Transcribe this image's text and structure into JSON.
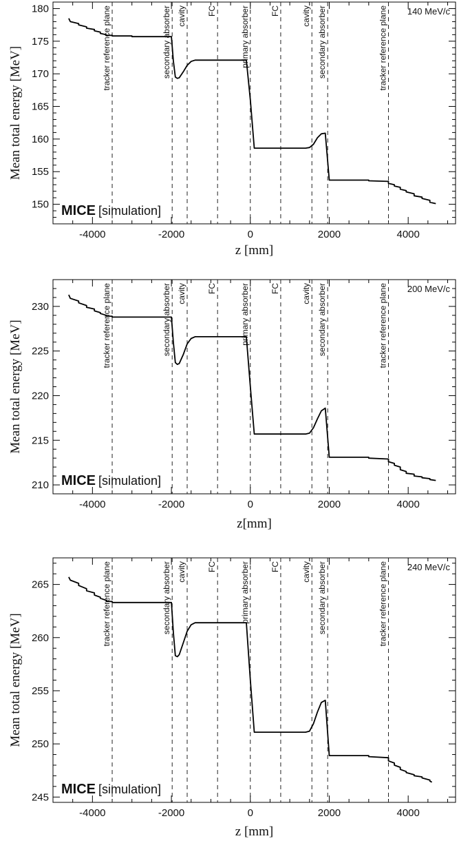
{
  "chart_data": [
    {
      "type": "line",
      "momentum_label": "140 MeV/c",
      "xlabel": "z [mm]",
      "ylabel": "Mean total energy [MeV]",
      "watermark": {
        "bold": "MICE",
        "regular": "[simulation]"
      },
      "xlim": [
        -5000,
        5200
      ],
      "ylim": [
        147,
        181
      ],
      "xticks": [
        -4000,
        -2000,
        0,
        2000,
        4000
      ],
      "xtick_labels": [
        "-4000",
        "-2000",
        "0",
        "2000",
        "4000"
      ],
      "yticks": [
        150,
        155,
        160,
        165,
        170,
        175,
        180
      ],
      "ytick_labels": [
        "150",
        "155",
        "160",
        "165",
        "170",
        "175",
        "180"
      ],
      "markers": [
        {
          "z": -3500,
          "label": "tracker reference plane"
        },
        {
          "z": -1980,
          "label": "secondary absorber"
        },
        {
          "z": -1600,
          "label": "cavity"
        },
        {
          "z": -830,
          "label": "FC"
        },
        {
          "z": 0,
          "label": "primary absorber"
        },
        {
          "z": 770,
          "label": "FC"
        },
        {
          "z": 1560,
          "label": "cavity"
        },
        {
          "z": 1960,
          "label": "secondary absorber"
        },
        {
          "z": 3500,
          "label": "tracker reference plane"
        }
      ],
      "series": [
        {
          "x": [
            -4600,
            -4560,
            -4560,
            -4350,
            -4350,
            -4150,
            -4150,
            -3950,
            -3950,
            -3800,
            -3800,
            -3650,
            -3650,
            -3500,
            -3500,
            -3000,
            -3000,
            -2000,
            -1950,
            -1900,
            -1850,
            -1800,
            -1700,
            -1600,
            -1500,
            -1400,
            -1300,
            -100,
            0,
            100,
            1400,
            1500,
            1600,
            1700,
            1800,
            1900,
            2000,
            3000,
            3000,
            3500,
            3500,
            3650,
            3650,
            3800,
            3800,
            3950,
            3950,
            4150,
            4150,
            4350,
            4350,
            4550,
            4550,
            4700
          ],
          "y": [
            178.5,
            178.0,
            178.0,
            177.7,
            177.5,
            177.2,
            177.0,
            176.8,
            176.6,
            176.4,
            176.2,
            176.0,
            175.9,
            175.9,
            175.8,
            175.8,
            175.7,
            175.7,
            172.0,
            169.5,
            169.3,
            169.4,
            170.3,
            171.3,
            171.9,
            172.1,
            172.1,
            172.1,
            166.0,
            158.6,
            158.6,
            158.7,
            159.2,
            160.2,
            160.8,
            160.9,
            153.7,
            153.7,
            153.6,
            153.5,
            153.2,
            153.0,
            152.8,
            152.6,
            152.3,
            152.1,
            151.9,
            151.6,
            151.3,
            151.1,
            150.9,
            150.6,
            150.3,
            150.1
          ]
        }
      ]
    },
    {
      "type": "line",
      "momentum_label": "200 MeV/c",
      "xlabel": "z[mm]",
      "ylabel": "Mean total energy [MeV]",
      "watermark": {
        "bold": "MICE",
        "regular": "[simulation]"
      },
      "xlim": [
        -5000,
        5200
      ],
      "ylim": [
        209,
        233
      ],
      "xticks": [
        -4000,
        -2000,
        0,
        2000,
        4000
      ],
      "xtick_labels": [
        "-4000",
        "-2000",
        "0",
        "2000",
        "4000"
      ],
      "yticks": [
        210,
        215,
        220,
        225,
        230
      ],
      "ytick_labels": [
        "210",
        "215",
        "220",
        "225",
        "230"
      ],
      "markers": [
        {
          "z": -3500,
          "label": "tracker reference plane"
        },
        {
          "z": -1980,
          "label": "secondary absorber"
        },
        {
          "z": -1600,
          "label": "cavity"
        },
        {
          "z": -830,
          "label": "FC"
        },
        {
          "z": 0,
          "label": "primary absorber"
        },
        {
          "z": 770,
          "label": "FC"
        },
        {
          "z": 1560,
          "label": "cavity"
        },
        {
          "z": 1960,
          "label": "secondary absorber"
        },
        {
          "z": 3500,
          "label": "tracker reference plane"
        }
      ],
      "series": [
        {
          "x": [
            -4600,
            -4560,
            -4560,
            -4350,
            -4350,
            -4150,
            -4150,
            -3950,
            -3950,
            -3800,
            -3800,
            -3650,
            -3650,
            -3500,
            -3500,
            -3000,
            -3000,
            -2000,
            -1950,
            -1900,
            -1850,
            -1800,
            -1700,
            -1600,
            -1500,
            -1400,
            -1300,
            -100,
            0,
            100,
            1400,
            1500,
            1600,
            1700,
            1800,
            1900,
            2000,
            3000,
            3000,
            3500,
            3500,
            3650,
            3650,
            3800,
            3800,
            3950,
            3950,
            4150,
            4150,
            4350,
            4350,
            4550,
            4550,
            4700
          ],
          "y": [
            231.3,
            230.9,
            230.9,
            230.6,
            230.4,
            230.1,
            229.9,
            229.7,
            229.5,
            229.3,
            229.2,
            229.0,
            228.9,
            228.9,
            228.8,
            228.8,
            228.8,
            228.8,
            226.0,
            223.7,
            223.5,
            223.6,
            224.6,
            225.8,
            226.4,
            226.6,
            226.6,
            226.6,
            221.0,
            215.7,
            215.7,
            215.8,
            216.4,
            217.4,
            218.3,
            218.6,
            213.1,
            213.1,
            213.0,
            212.9,
            212.6,
            212.4,
            212.2,
            212.0,
            211.7,
            211.5,
            211.3,
            211.2,
            211.0,
            210.9,
            210.8,
            210.7,
            210.6,
            210.5
          ]
        }
      ]
    },
    {
      "type": "line",
      "momentum_label": "240 MeV/c",
      "xlabel": "z [mm]",
      "ylabel": "Mean total energy [MeV]",
      "watermark": {
        "bold": "MICE",
        "regular": "[simulation]"
      },
      "xlim": [
        -5000,
        5200
      ],
      "ylim": [
        244.5,
        267.5
      ],
      "xticks": [
        -4000,
        -2000,
        0,
        2000,
        4000
      ],
      "xtick_labels": [
        "-4000",
        "-2000",
        "0",
        "2000",
        "4000"
      ],
      "yticks": [
        245,
        250,
        255,
        260,
        265
      ],
      "ytick_labels": [
        "245",
        "250",
        "255",
        "260",
        "265"
      ],
      "markers": [
        {
          "z": -3500,
          "label": "tracker reference plane"
        },
        {
          "z": -1980,
          "label": "secondary absorber"
        },
        {
          "z": -1600,
          "label": "cavity"
        },
        {
          "z": -830,
          "label": "FC"
        },
        {
          "z": 0,
          "label": "primary absorber"
        },
        {
          "z": 770,
          "label": "FC"
        },
        {
          "z": 1560,
          "label": "cavity"
        },
        {
          "z": 1960,
          "label": "secondary absorber"
        },
        {
          "z": 3500,
          "label": "tracker reference plane"
        }
      ],
      "series": [
        {
          "x": [
            -4600,
            -4560,
            -4560,
            -4350,
            -4350,
            -4150,
            -4150,
            -3950,
            -3950,
            -3800,
            -3800,
            -3650,
            -3650,
            -3500,
            -3500,
            -3000,
            -3000,
            -2000,
            -1950,
            -1900,
            -1850,
            -1800,
            -1700,
            -1600,
            -1500,
            -1400,
            -1300,
            -100,
            0,
            100,
            1400,
            1500,
            1600,
            1700,
            1800,
            1900,
            2000,
            3000,
            3000,
            3500,
            3500,
            3650,
            3650,
            3800,
            3800,
            3950,
            3950,
            4150,
            4150,
            4350,
            4350,
            4550,
            4550,
            4600
          ],
          "y": [
            265.7,
            265.4,
            265.4,
            265.1,
            264.9,
            264.6,
            264.4,
            264.2,
            264.0,
            263.8,
            263.7,
            263.5,
            263.4,
            263.4,
            263.3,
            263.3,
            263.3,
            263.3,
            260.5,
            258.3,
            258.2,
            258.4,
            259.5,
            260.6,
            261.2,
            261.4,
            261.4,
            261.4,
            256.0,
            251.1,
            251.1,
            251.2,
            251.9,
            253.0,
            253.9,
            254.1,
            248.9,
            248.9,
            248.8,
            248.7,
            248.4,
            248.2,
            248.0,
            247.8,
            247.6,
            247.4,
            247.3,
            247.1,
            247.0,
            246.9,
            246.8,
            246.6,
            246.5,
            246.4
          ]
        }
      ]
    }
  ]
}
